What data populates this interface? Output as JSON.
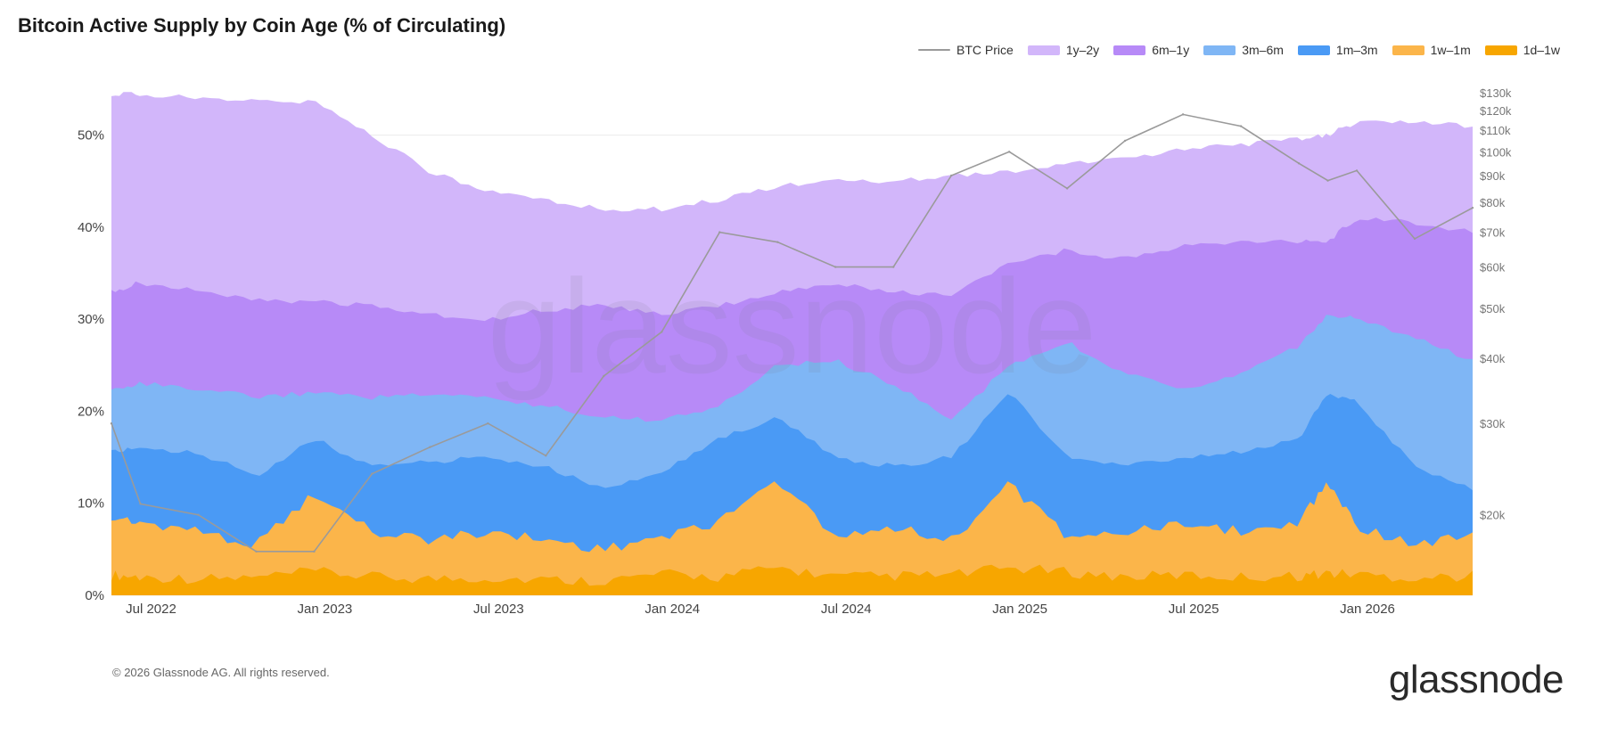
{
  "chart_data": {
    "type": "area",
    "title": "Bitcoin Active Supply by Coin Age (% of Circulating)",
    "watermark": "glassnode",
    "x_tick_labels": [
      "Jul 2022",
      "Jan 2023",
      "Jul 2023",
      "Jan 2024",
      "Jul 2024",
      "Jan 2025",
      "Jul 2025",
      "Jan 2026"
    ],
    "x": [
      "2022-06",
      "2022-07",
      "2022-09",
      "2022-11",
      "2023-01",
      "2023-03",
      "2023-05",
      "2023-07",
      "2023-09",
      "2023-11",
      "2024-01",
      "2024-03",
      "2024-05",
      "2024-07",
      "2024-09",
      "2024-11",
      "2025-01",
      "2025-03",
      "2025-05",
      "2025-07",
      "2025-09",
      "2025-11",
      "2025-12",
      "2026-01",
      "2026-03",
      "2026-05"
    ],
    "y_left": {
      "ylim": [
        0,
        55
      ],
      "tick_labels": [
        "0%",
        "10%",
        "20%",
        "30%",
        "40%",
        "50%"
      ],
      "tick_values": [
        0,
        10,
        20,
        30,
        40,
        50
      ]
    },
    "y_right": {
      "scale": "log",
      "ylim": [
        14000,
        132000
      ],
      "tick_labels": [
        "$20k",
        "$30k",
        "$40k",
        "$50k",
        "$60k",
        "$70k",
        "$80k",
        "$90k",
        "$100k",
        "$110k",
        "$120k",
        "$130k"
      ],
      "tick_values": [
        20000,
        30000,
        40000,
        50000,
        60000,
        70000,
        80000,
        90000,
        100000,
        110000,
        120000,
        130000
      ]
    },
    "series": [
      {
        "name": "1d–1w",
        "color": "#f7a600",
        "kind": "stacked_cumulative",
        "values": [
          2.2,
          2.0,
          1.8,
          1.9,
          2.6,
          2.0,
          1.8,
          1.9,
          1.7,
          1.6,
          2.3,
          2.0,
          3.0,
          2.0,
          2.1,
          2.2,
          3.0,
          2.5,
          2.0,
          2.2,
          2.0,
          2.1,
          2.4,
          2.3,
          1.9,
          2.1
        ]
      },
      {
        "name": "1w–1m",
        "color": "#fbb54a",
        "kind": "stacked_cumulative",
        "values": [
          8.5,
          8.0,
          7.0,
          5.5,
          11.0,
          7.0,
          6.0,
          7.0,
          6.0,
          5.0,
          6.5,
          8.0,
          12.5,
          6.5,
          7.5,
          6.0,
          12.0,
          6.5,
          7.0,
          7.5,
          7.0,
          8.0,
          12.5,
          7.5,
          5.5,
          6.5
        ]
      },
      {
        "name": "1m–3m",
        "color": "#4a9af5",
        "kind": "stacked_cumulative",
        "values": [
          15.5,
          16.0,
          15.5,
          13.0,
          17.0,
          14.0,
          14.5,
          15.0,
          14.0,
          11.5,
          13.5,
          17.0,
          19.5,
          15.0,
          14.0,
          15.0,
          22.0,
          15.0,
          14.0,
          15.0,
          15.5,
          17.0,
          22.0,
          21.0,
          14.0,
          11.5
        ]
      },
      {
        "name": "3m–6m",
        "color": "#7fb6f5",
        "kind": "stacked_cumulative",
        "values": [
          22.5,
          23.0,
          22.5,
          21.5,
          22.0,
          21.5,
          22.0,
          21.5,
          20.5,
          19.5,
          19.0,
          20.5,
          25.0,
          25.5,
          23.0,
          19.0,
          25.0,
          27.5,
          24.0,
          22.5,
          24.0,
          27.0,
          30.5,
          30.0,
          28.0,
          25.5
        ]
      },
      {
        "name": "6m–1y",
        "color": "#b78af7",
        "kind": "stacked_cumulative",
        "values": [
          33.0,
          34.0,
          33.0,
          32.0,
          32.0,
          31.5,
          30.5,
          30.0,
          31.0,
          31.5,
          30.5,
          31.5,
          33.0,
          34.0,
          33.0,
          32.5,
          36.0,
          37.5,
          36.5,
          38.0,
          38.5,
          38.5,
          38.5,
          41.0,
          40.5,
          39.5
        ]
      },
      {
        "name": "1y–2y",
        "color": "#d2b6fa",
        "kind": "stacked_cumulative",
        "values": [
          54.5,
          54.5,
          54.0,
          54.0,
          53.5,
          50.0,
          46.0,
          44.0,
          43.0,
          42.0,
          42.0,
          43.0,
          44.5,
          45.0,
          45.0,
          45.5,
          46.0,
          47.0,
          47.5,
          48.5,
          49.0,
          49.5,
          50.0,
          51.5,
          51.5,
          51.0
        ]
      },
      {
        "name": "BTC Price",
        "color": "#9a9a9a",
        "kind": "line_right_axis",
        "values": [
          30000,
          21000,
          20000,
          17000,
          17000,
          24000,
          27000,
          30000,
          26000,
          37000,
          45000,
          70000,
          67000,
          60000,
          60000,
          90000,
          100000,
          85000,
          105000,
          118000,
          112000,
          95000,
          88000,
          92000,
          68000,
          78000
        ]
      }
    ],
    "legend": {
      "placement": "top-right",
      "order": [
        "BTC Price",
        "1y–2y",
        "6m–1y",
        "3m–6m",
        "1m–3m",
        "1w–1m",
        "1d–1w"
      ]
    }
  },
  "footer": {
    "copyright": "© 2026 Glassnode AG. All rights reserved.",
    "brand": "glassnode"
  }
}
